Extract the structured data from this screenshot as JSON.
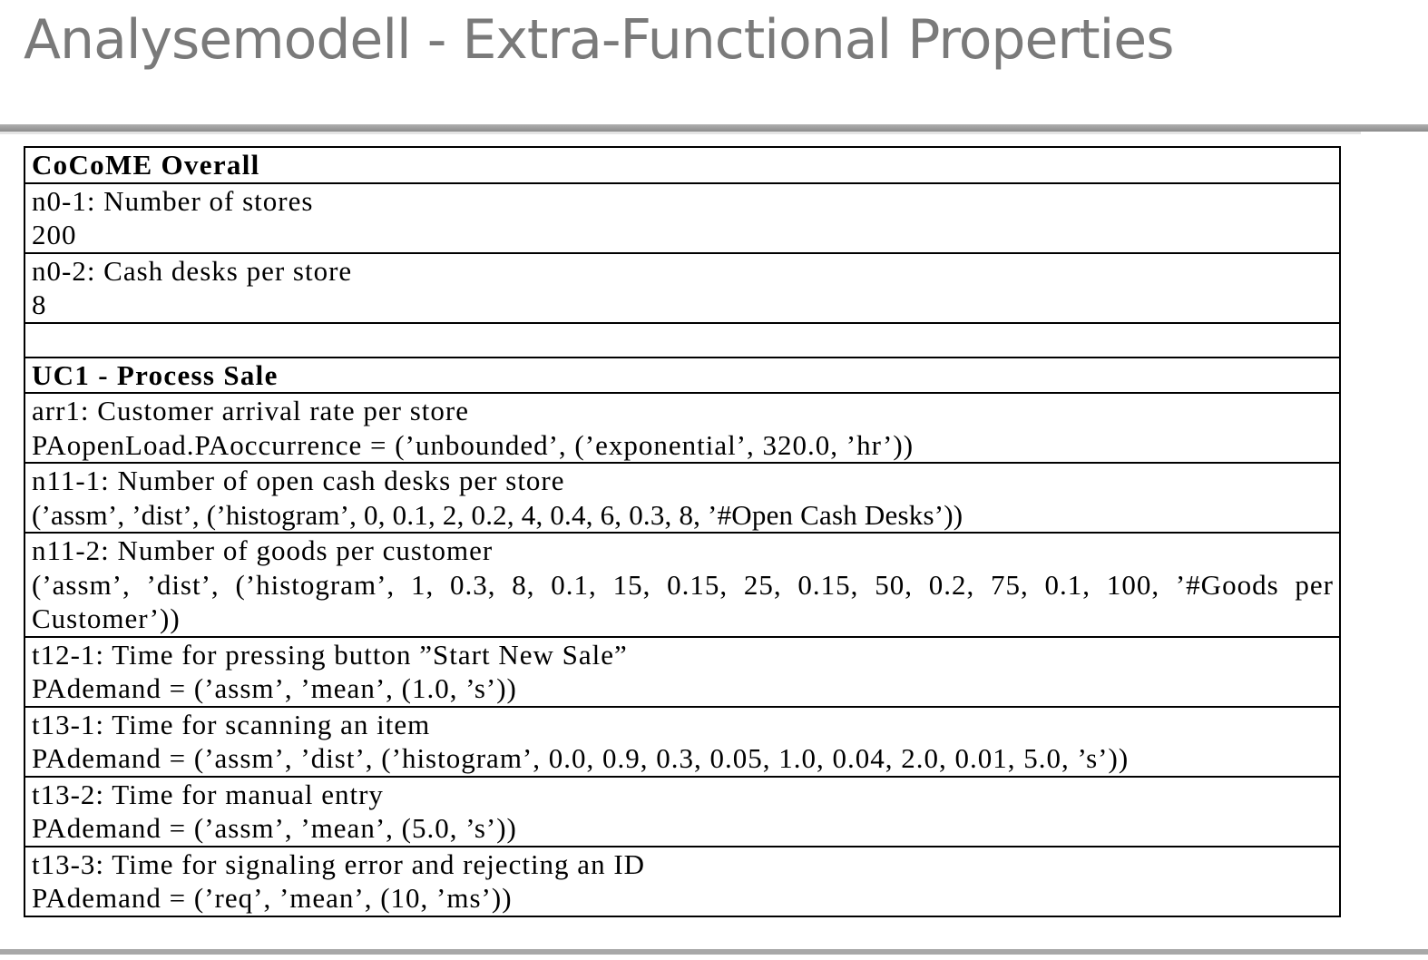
{
  "slide": {
    "title": "Analysemodell - Extra-Functional Properties"
  },
  "table": {
    "overall_heading": "CoCoME Overall",
    "n0_1": {
      "label": "n0-1: Number of stores",
      "value": "200"
    },
    "n0_2": {
      "label": "n0-2: Cash desks per store",
      "value": "8"
    },
    "uc1_heading": "UC1 - Process Sale",
    "arr1": {
      "label": "arr1: Customer arrival rate per store",
      "value": "PAopenLoad.PAoccurrence = (’unbounded’, (’exponential’, 320.0, ’hr’))"
    },
    "n11_1": {
      "label": "n11-1: Number of open cash desks per store",
      "value": "(’assm’, ’dist’, (’histogram’, 0, 0.1, 2, 0.2, 4, 0.4, 6, 0.3, 8, ’#Open Cash Desks’))"
    },
    "n11_2": {
      "label": "n11-2: Number of goods per customer",
      "value": "(’assm’, ’dist’, (’histogram’, 1, 0.3, 8, 0.1, 15, 0.15, 25, 0.15, 50, 0.2, 75, 0.1, 100, ’#Goods per Customer’))"
    },
    "t12_1": {
      "label": "t12-1: Time for pressing button ”Start New Sale”",
      "value": "PAdemand = (’assm’, ’mean’, (1.0, ’s’))"
    },
    "t13_1": {
      "label": "t13-1: Time for scanning an item",
      "value": "PAdemand = (’assm’, ’dist’, (’histogram’, 0.0, 0.9, 0.3, 0.05, 1.0, 0.04, 2.0, 0.01, 5.0, ’s’))"
    },
    "t13_2": {
      "label": "t13-2: Time for manual entry",
      "value": "PAdemand = (’assm’, ’mean’, (5.0, ’s’))"
    },
    "t13_3": {
      "label": "t13-3: Time for signaling error and rejecting an ID",
      "value": "PAdemand = (’req’, ’mean’, (10, ’ms’))"
    }
  }
}
